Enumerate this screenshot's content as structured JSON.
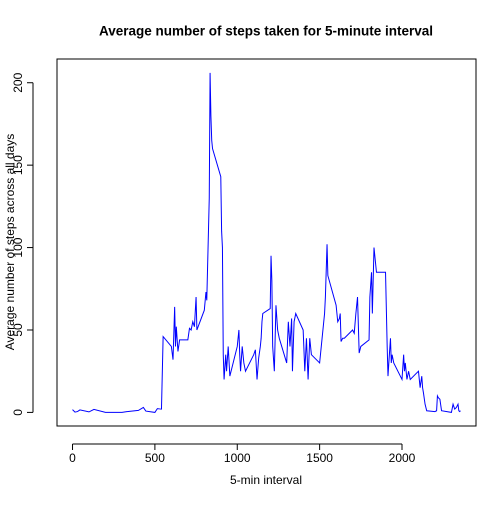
{
  "chart_data": {
    "type": "line",
    "title": "Average number of steps taken for 5-minute interval",
    "x_label": "5-min interval",
    "y_label": "Average number of steps across all days",
    "x": [
      0,
      15,
      30,
      45,
      100,
      130,
      200,
      230,
      300,
      330,
      400,
      430,
      445,
      500,
      515,
      530,
      540,
      550,
      600,
      610,
      620,
      625,
      630,
      640,
      650,
      700,
      710,
      720,
      730,
      740,
      750,
      755,
      800,
      810,
      815,
      830,
      835,
      840,
      845,
      850,
      900,
      905,
      910,
      915,
      920,
      930,
      935,
      945,
      955,
      1000,
      1010,
      1015,
      1020,
      1030,
      1040,
      1050,
      1100,
      1110,
      1120,
      1130,
      1140,
      1145,
      1150,
      1155,
      1200,
      1205,
      1210,
      1215,
      1225,
      1235,
      1245,
      1255,
      1300,
      1310,
      1320,
      1330,
      1335,
      1345,
      1355,
      1400,
      1410,
      1420,
      1430,
      1440,
      1450,
      1500,
      1510,
      1515,
      1530,
      1535,
      1545,
      1550,
      1600,
      1610,
      1620,
      1625,
      1630,
      1640,
      1650,
      1700,
      1710,
      1720,
      1730,
      1740,
      1750,
      1800,
      1805,
      1815,
      1820,
      1825,
      1830,
      1840,
      1845,
      1900,
      1910,
      1915,
      1920,
      1930,
      1935,
      1940,
      1950,
      2000,
      2010,
      2015,
      2020,
      2030,
      2040,
      2050,
      2100,
      2110,
      2120,
      2125,
      2130,
      2140,
      2150,
      2200,
      2210,
      2215,
      2220,
      2230,
      2240,
      2300,
      2310,
      2320,
      2330,
      2340,
      2345,
      2350,
      2355
    ],
    "series": [
      {
        "name": "steps",
        "color": "#0000ff",
        "values": [
          1.7,
          0.2,
          0.5,
          1.5,
          0.3,
          1.8,
          0,
          0,
          0,
          0.5,
          1.2,
          3,
          0.8,
          0,
          2.3,
          2.1,
          2,
          46,
          40,
          32,
          64,
          40,
          52,
          37,
          44,
          44,
          51,
          50,
          55,
          52,
          70,
          50,
          62,
          73,
          68,
          130,
          206,
          180,
          165,
          160,
          143,
          110,
          100,
          35,
          20,
          35,
          25,
          40,
          22,
          40,
          50,
          35,
          25,
          40,
          30,
          25,
          35,
          38,
          20,
          33,
          40,
          45,
          55,
          60,
          63,
          95,
          80,
          40,
          25,
          65,
          50,
          45,
          30,
          55,
          40,
          57,
          25,
          55,
          60,
          50,
          25,
          45,
          20,
          45,
          35,
          30,
          40,
          45,
          60,
          70,
          102,
          83,
          65,
          55,
          57,
          60,
          43,
          45,
          45,
          50,
          48,
          60,
          70,
          36,
          40,
          44,
          70,
          85,
          60,
          80,
          100,
          90,
          85,
          85,
          40,
          22,
          30,
          45,
          30,
          35,
          30,
          20,
          35,
          25,
          30,
          20,
          25,
          20,
          25,
          15,
          22,
          15,
          12,
          5,
          1,
          0.5,
          1,
          10,
          9,
          8,
          1,
          0,
          5,
          2,
          3,
          5,
          1,
          0.5,
          1
        ]
      }
    ],
    "xlim": [
      -94.2,
      2449.2
    ],
    "xticks": [
      0,
      500,
      1000,
      1500,
      2000
    ],
    "ylim": [
      -8.25,
      214.4
    ],
    "yticks": [
      0,
      50,
      100,
      150,
      200
    ]
  }
}
